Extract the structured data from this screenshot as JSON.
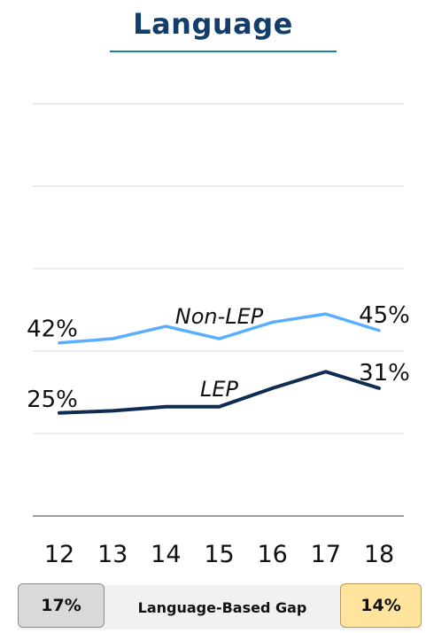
{
  "title": "Language",
  "colors": {
    "title": "#123e6b",
    "non_lep": "#5aaeff",
    "lep": "#0f2d52",
    "gap_start_badge": "#d9d9d9",
    "gap_end_badge": "#ffe49e"
  },
  "chart_data": {
    "type": "line",
    "x": [
      12,
      13,
      14,
      15,
      16,
      17,
      18
    ],
    "x_tick_labels": [
      "12",
      "13",
      "14",
      "15",
      "16",
      "17",
      "18"
    ],
    "ylim": [
      0,
      100
    ],
    "grid": true,
    "series": [
      {
        "name": "Non-LEP",
        "values": [
          42,
          43,
          46,
          43,
          47,
          49,
          45
        ],
        "start_label": "42%",
        "end_label": "45%"
      },
      {
        "name": "LEP",
        "values": [
          25,
          25.5,
          26.5,
          26.5,
          31,
          35,
          31
        ],
        "start_label": "25%",
        "end_label": "31%"
      }
    ]
  },
  "gap": {
    "label": "Language-Based Gap",
    "start_value": "17%",
    "end_value": "14%"
  }
}
